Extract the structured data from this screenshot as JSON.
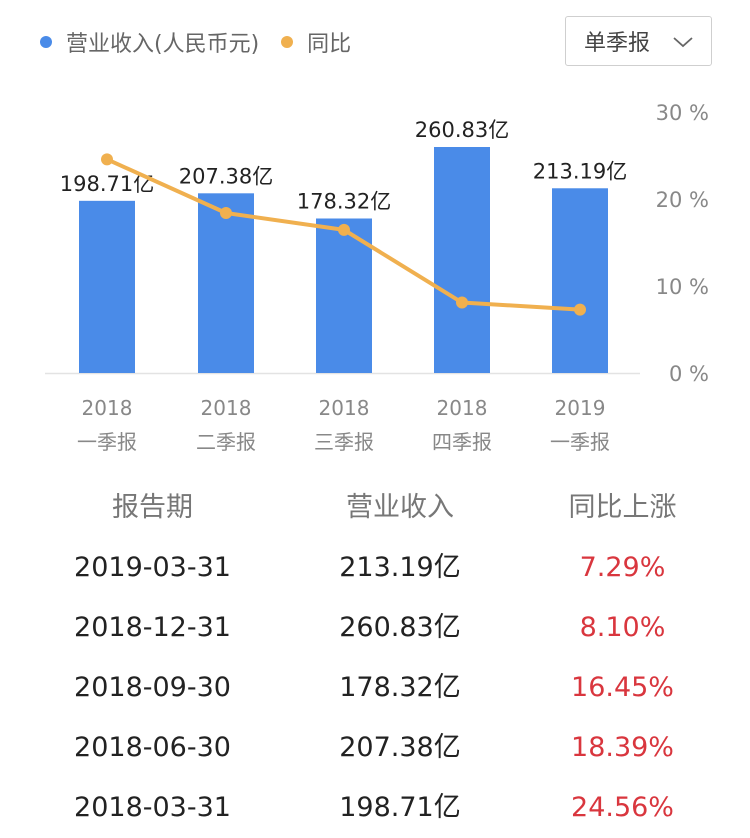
{
  "legend": {
    "revenue": {
      "label": "营业收入(人民币元)",
      "color": "#4a8be8"
    },
    "yoy": {
      "label": "同比",
      "color": "#f0b04f"
    }
  },
  "period_select": {
    "label": "单季报",
    "icon": "chevron-down-icon"
  },
  "chart_data": {
    "type": "bar",
    "categories": [
      "2018\n一季报",
      "2018\n二季报",
      "2018\n三季报",
      "2018\n四季报",
      "2019\n一季报"
    ],
    "series": [
      {
        "name": "营业收入(人民币元)",
        "type": "bar",
        "values": [
          198.71,
          207.38,
          178.32,
          260.83,
          213.19
        ],
        "labels": [
          "198.71亿",
          "207.38亿",
          "178.32亿",
          "260.83亿",
          "213.19亿"
        ]
      },
      {
        "name": "同比",
        "type": "line",
        "values": [
          24.56,
          18.39,
          16.45,
          8.1,
          7.29
        ]
      }
    ],
    "y2_ticks": [
      "0 %",
      "10 %",
      "20 %",
      "30 %"
    ],
    "y2lim": [
      0,
      30
    ],
    "ylim": [
      0,
      260.83
    ],
    "grid": false,
    "legend_position": "top-left"
  },
  "table": {
    "headers": [
      "报告期",
      "营业收入",
      "同比上涨"
    ],
    "rows": [
      [
        "2019-03-31",
        "213.19亿",
        "7.29%"
      ],
      [
        "2018-12-31",
        "260.83亿",
        "8.10%"
      ],
      [
        "2018-09-30",
        "178.32亿",
        "16.45%"
      ],
      [
        "2018-06-30",
        "207.38亿",
        "18.39%"
      ],
      [
        "2018-03-31",
        "198.71亿",
        "24.56%"
      ]
    ]
  }
}
